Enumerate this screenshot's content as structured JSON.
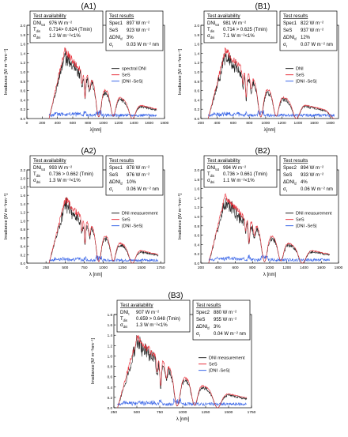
{
  "chart_data": [
    {
      "id": "A1",
      "type": "line",
      "panel_label": "(A1)",
      "xlabel": "λ[nm]",
      "ylabel": "Irradiance [W m⁻²nm⁻¹]",
      "xlim": [
        0,
        1800
      ],
      "ylim": [
        0,
        2.0
      ],
      "x_ticks": [
        0,
        200,
        400,
        600,
        800,
        1000,
        1200,
        1400,
        1600,
        1800
      ],
      "y_ticks": [
        0.0,
        0.2,
        0.4,
        0.6,
        0.8,
        1.0,
        1.2,
        1.4,
        1.6,
        1.8,
        2.0
      ],
      "legend": [
        "spectral DNI",
        "SeS",
        "|DNI -SeS|"
      ],
      "legend_position": "right",
      "availability": {
        "title": "Test availability",
        "lines": [
          {
            "label": "DNI",
            "sub": "tot",
            "value": "976 W m⁻²"
          },
          {
            "label": "T",
            "sub": "dis",
            "value": "0.714> 0.624 (Tmin)"
          },
          {
            "label": "σ",
            "sub": "dni",
            "value": "1.2 W m⁻²<1%"
          }
        ]
      },
      "results": {
        "title": "Test results",
        "lines": [
          {
            "label": "Spec1",
            "value": "897 W m⁻²"
          },
          {
            "label": "SeS",
            "value": "923 W m⁻²"
          },
          {
            "label": "ΔDNI",
            "sub": "tf",
            "value": "3%"
          },
          {
            "label": "σ",
            "sub": "r",
            "value": "0.03 W m⁻² nm"
          }
        ]
      },
      "peak_x": 490,
      "peak_y": 1.55,
      "end_x": 1700
    },
    {
      "id": "B1",
      "type": "line",
      "panel_label": "(B1)",
      "xlabel": "λ[nm]",
      "ylabel": "Irradiance [W m⁻²nm⁻¹]",
      "xlim": [
        200,
        1900
      ],
      "ylim": [
        0,
        2.0
      ],
      "x_ticks": [
        200,
        400,
        600,
        800,
        1000,
        1200,
        1400,
        1600,
        1800
      ],
      "y_ticks": [
        0.0,
        0.2,
        0.4,
        0.6,
        0.8,
        1.0,
        1.2,
        1.4,
        1.6,
        1.8,
        2.0
      ],
      "legend": [
        "DNI",
        "SeS",
        "|DNI -SeS|"
      ],
      "legend_position": "right",
      "availability": {
        "title": "Test availability",
        "lines": [
          {
            "label": "DNI",
            "sub": "tot",
            "value": "981 W m⁻²"
          },
          {
            "label": "T",
            "sub": "dis",
            "value": "0.714 > 0.625 (Tmin)"
          },
          {
            "label": "σ",
            "sub": "dni",
            "value": "7.1 W m⁻²<1%"
          }
        ]
      },
      "results": {
        "title": "Test results",
        "lines": [
          {
            "label": "Spec1",
            "value": "822 W m⁻²"
          },
          {
            "label": "SeS",
            "value": "937 W m⁻²"
          },
          {
            "label": "ΔDNI",
            "sub": "tf",
            "value": "12%"
          },
          {
            "label": "σ",
            "sub": "r",
            "value": "0.07 W m⁻² nm"
          }
        ]
      },
      "peak_x": 500,
      "peak_y": 1.55,
      "end_x": 1850
    },
    {
      "id": "A2",
      "type": "line",
      "panel_label": "(A2)",
      "xlabel": "λ [nm]",
      "ylabel": "Irradiance [W m⁻²nm⁻¹]",
      "xlim": [
        0,
        1800
      ],
      "ylim": [
        0,
        2.2
      ],
      "x_ticks": [
        0,
        250,
        500,
        750,
        1000,
        1250,
        1500,
        1750
      ],
      "y_ticks": [
        0.0,
        0.2,
        0.4,
        0.6,
        0.8,
        1.0,
        1.2,
        1.4,
        1.6,
        1.8,
        2.0,
        2.2
      ],
      "legend": [
        "DNI measurement",
        "SeS",
        "|DNI -SeS|"
      ],
      "legend_position": "right",
      "availability": {
        "title": "Test availability",
        "lines": [
          {
            "label": "DNI",
            "sub": "tot",
            "value": "993 W m⁻²"
          },
          {
            "label": "T",
            "sub": "dis",
            "value": "0.736 > 0.662 (Tmin)"
          },
          {
            "label": "σ",
            "sub": "dni",
            "value": "1.3 W m⁻²<1%"
          }
        ]
      },
      "results": {
        "title": "Test results",
        "lines": [
          {
            "label": "Spec1",
            "value": "878 W m⁻²"
          },
          {
            "label": "SeS",
            "value": "976 W m⁻²"
          },
          {
            "label": "ΔDNI",
            "sub": "tf",
            "value": "10%"
          },
          {
            "label": "σ",
            "sub": "r",
            "value": "0.06 W m⁻² nm"
          }
        ]
      },
      "peak_x": 500,
      "peak_y": 1.6,
      "end_x": 1720
    },
    {
      "id": "B2",
      "type": "line",
      "panel_label": "(B2)",
      "xlabel": "λ [nm]",
      "ylabel": "Irradiance [W m⁻²nm⁻¹]",
      "xlim": [
        200,
        1800
      ],
      "ylim": [
        0,
        2.0
      ],
      "x_ticks": [
        200,
        400,
        600,
        800,
        1000,
        1200,
        1400,
        1600,
        1800
      ],
      "y_ticks": [
        0.0,
        0.2,
        0.4,
        0.6,
        0.8,
        1.0,
        1.2,
        1.4,
        1.6,
        1.8,
        2.0
      ],
      "legend": [
        "DNI measurement",
        "SeS",
        "|DNI -SeS|"
      ],
      "legend_position": "right",
      "availability": {
        "title": "Test availability",
        "lines": [
          {
            "label": "DNI",
            "sub": "tot",
            "value": "994 W m⁻²"
          },
          {
            "label": "T",
            "sub": "dis",
            "value": "0.736 > 0.661 (Tmin)"
          },
          {
            "label": "σ",
            "sub": "dni",
            "value": "1.1 W m⁻²<1%"
          }
        ]
      },
      "results": {
        "title": "Test results",
        "lines": [
          {
            "label": "Spec2",
            "value": "894 W m⁻²"
          },
          {
            "label": "SeS",
            "value": "933 W m⁻²"
          },
          {
            "label": "ΔDNI",
            "sub": "tf",
            "value": "4%"
          },
          {
            "label": "σ",
            "sub": "r",
            "value": "0.06 W m⁻² nm"
          }
        ]
      },
      "peak_x": 480,
      "peak_y": 1.5,
      "end_x": 1700
    },
    {
      "id": "B3",
      "type": "line",
      "panel_label": "(B3)",
      "xlabel": "λ [nm]",
      "ylabel": "Irradiance [W m⁻²nm⁻¹]",
      "xlim": [
        250,
        1750
      ],
      "ylim": [
        0,
        1.8
      ],
      "x_ticks": [
        250,
        500,
        750,
        1000,
        1250,
        1500,
        1750
      ],
      "y_ticks": [
        0.0,
        0.2,
        0.4,
        0.6,
        0.8,
        1.0,
        1.2,
        1.4,
        1.6,
        1.8
      ],
      "legend": [
        "DNI measurement",
        "SeS",
        "|DNI -SeS|"
      ],
      "legend_position": "right",
      "availability": {
        "title": "Test availability",
        "lines": [
          {
            "label": "DNI",
            "sub": "t",
            "value": "907 W m⁻²"
          },
          {
            "label": "T",
            "sub": "dis",
            "value": "0.659 > 0.648 (Tmin)"
          },
          {
            "label": "σ",
            "sub": "dni",
            "value": "1.3 W m⁻²<1%"
          }
        ]
      },
      "results": {
        "title": "Test results",
        "lines": [
          {
            "label": "Spec2",
            "value": "880 W m⁻²"
          },
          {
            "label": "SeS",
            "value": "955 W m⁻²"
          },
          {
            "label": "ΔDNI",
            "sub": "tf",
            "value": "3%"
          },
          {
            "label": "σ",
            "sub": "r",
            "value": "0.04 W m⁻² nm"
          }
        ]
      },
      "peak_x": 500,
      "peak_y": 1.45,
      "end_x": 1700
    }
  ],
  "colors": {
    "dni": "#222222",
    "ses": "#e8323c",
    "diff": "#3a66e8",
    "box_border": "#000000"
  }
}
